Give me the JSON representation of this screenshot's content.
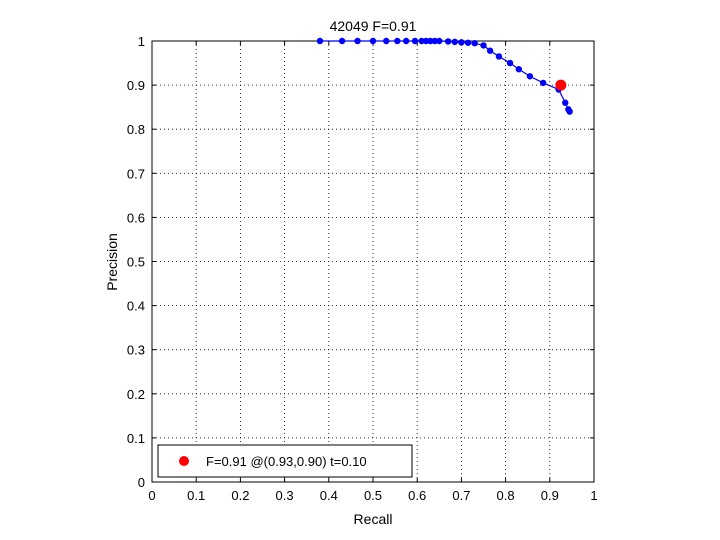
{
  "chart_data": {
    "type": "scatter",
    "title": "42049 F=0.91",
    "xlabel": "Recall",
    "ylabel": "Precision",
    "xlim": [
      0,
      1
    ],
    "ylim": [
      0,
      1
    ],
    "xticks": [
      "0",
      "0.1",
      "0.2",
      "0.3",
      "0.4",
      "0.5",
      "0.6",
      "0.7",
      "0.8",
      "0.9",
      "1"
    ],
    "yticks": [
      "0",
      "0.1",
      "0.2",
      "0.3",
      "0.4",
      "0.5",
      "0.6",
      "0.7",
      "0.8",
      "0.9",
      "1"
    ],
    "grid": true,
    "legend_position": "bottom-left",
    "series": [
      {
        "color": "#0000ff",
        "line": true,
        "x": [
          0.38,
          0.43,
          0.465,
          0.5,
          0.53,
          0.555,
          0.575,
          0.595,
          0.61,
          0.62,
          0.63,
          0.64,
          0.65,
          0.67,
          0.685,
          0.7,
          0.715,
          0.73,
          0.75,
          0.765,
          0.785,
          0.81,
          0.83,
          0.855,
          0.885,
          0.92,
          0.935,
          0.942,
          0.945
        ],
        "y": [
          1.0,
          1.0,
          1.0,
          1.0,
          1.0,
          1.0,
          1.0,
          1.0,
          1.0,
          1.0,
          1.0,
          1.0,
          1.0,
          0.999,
          0.998,
          0.997,
          0.996,
          0.995,
          0.99,
          0.978,
          0.965,
          0.95,
          0.936,
          0.92,
          0.905,
          0.89,
          0.86,
          0.845,
          0.84
        ]
      },
      {
        "name": "F=0.91 @(0.93,0.90) t=0.10",
        "color": "#ff0000",
        "line": false,
        "x": [
          0.925
        ],
        "y": [
          0.9
        ]
      }
    ]
  }
}
